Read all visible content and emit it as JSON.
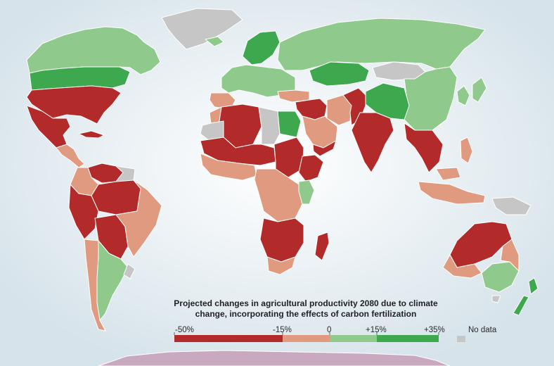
{
  "title": "Projected changes in agricultural productivity 2080 due to climate change, incorporating the effects of carbon fertilization",
  "title_line1": "Projected changes in agricultural productivity 2080 due to climate",
  "title_line2": "change, incorporating the effects of carbon fertilization",
  "legend": {
    "ticks": [
      "-50%",
      "-15%",
      "0",
      "+15%",
      "+35%"
    ],
    "no_data_label": "No data",
    "classes": [
      {
        "range": "-50% to -15%",
        "color": "#b22a2a"
      },
      {
        "range": "-15% to 0",
        "color": "#df9a80"
      },
      {
        "range": "0 to +15%",
        "color": "#8fca8c"
      },
      {
        "range": "+15% to +35%",
        "color": "#3da84d"
      }
    ],
    "no_data_color": "#c6c6c6"
  },
  "colors": {
    "ocean": "#dde8ee",
    "severe_loss": "#b22a2a",
    "loss": "#df9a80",
    "gain": "#8fca8c",
    "strong_gain": "#3da84d",
    "no_data": "#c6c6c6",
    "antarctica": "#c9a9c0"
  },
  "regions": [
    {
      "name": "Canada",
      "class": "gain"
    },
    {
      "name": "Greenland",
      "class": "no_data"
    },
    {
      "name": "Northern United States",
      "class": "strong_gain"
    },
    {
      "name": "Southern United States",
      "class": "severe_loss"
    },
    {
      "name": "Mexico",
      "class": "severe_loss"
    },
    {
      "name": "Central America",
      "class": "loss"
    },
    {
      "name": "Cuba",
      "class": "severe_loss"
    },
    {
      "name": "Venezuela",
      "class": "severe_loss"
    },
    {
      "name": "Colombia",
      "class": "loss"
    },
    {
      "name": "Guyanas",
      "class": "no_data"
    },
    {
      "name": "Northern Brazil",
      "class": "severe_loss"
    },
    {
      "name": "Peru",
      "class": "severe_loss"
    },
    {
      "name": "Bolivia and Paraguay",
      "class": "severe_loss"
    },
    {
      "name": "Eastern Brazil",
      "class": "loss"
    },
    {
      "name": "Argentina",
      "class": "gain"
    },
    {
      "name": "Chile",
      "class": "loss"
    },
    {
      "name": "Uruguay",
      "class": "no_data"
    },
    {
      "name": "Scandinavia",
      "class": "strong_gain"
    },
    {
      "name": "Western Europe",
      "class": "gain"
    },
    {
      "name": "Iberia",
      "class": "loss"
    },
    {
      "name": "Iceland",
      "class": "gain"
    },
    {
      "name": "Russia",
      "class": "gain"
    },
    {
      "name": "Kazakhstan",
      "class": "strong_gain"
    },
    {
      "name": "Mongolia",
      "class": "no_data"
    },
    {
      "name": "China",
      "class": "gain"
    },
    {
      "name": "Northern China",
      "class": "strong_gain"
    },
    {
      "name": "Turkey",
      "class": "loss"
    },
    {
      "name": "Middle East",
      "class": "severe_loss"
    },
    {
      "name": "Arabian Peninsula",
      "class": "loss"
    },
    {
      "name": "Yemen",
      "class": "severe_loss"
    },
    {
      "name": "Iran",
      "class": "loss"
    },
    {
      "name": "Afghanistan and Pakistan",
      "class": "severe_loss"
    },
    {
      "name": "India",
      "class": "severe_loss"
    },
    {
      "name": "Southeast Asia",
      "class": "severe_loss"
    },
    {
      "name": "Korea and Japan",
      "class": "gain"
    },
    {
      "name": "Philippines",
      "class": "loss"
    },
    {
      "name": "Indonesia",
      "class": "loss"
    },
    {
      "name": "Papua New Guinea",
      "class": "no_data"
    },
    {
      "name": "Morocco",
      "class": "loss"
    },
    {
      "name": "Algeria",
      "class": "severe_loss"
    },
    {
      "name": "Libya",
      "class": "no_data"
    },
    {
      "name": "Egypt",
      "class": "strong_gain"
    },
    {
      "name": "Western Sahara",
      "class": "no_data"
    },
    {
      "name": "Sahel",
      "class": "severe_loss"
    },
    {
      "name": "Sudan",
      "class": "severe_loss"
    },
    {
      "name": "Ethiopia",
      "class": "severe_loss"
    },
    {
      "name": "West Africa",
      "class": "loss"
    },
    {
      "name": "Central Africa",
      "class": "loss"
    },
    {
      "name": "Kenya",
      "class": "gain"
    },
    {
      "name": "Southern Africa",
      "class": "severe_loss"
    },
    {
      "name": "South Africa",
      "class": "loss"
    },
    {
      "name": "Madagascar",
      "class": "severe_loss"
    },
    {
      "name": "Northern Australia",
      "class": "severe_loss"
    },
    {
      "name": "South-eastern Australia",
      "class": "gain"
    },
    {
      "name": "Western Australia",
      "class": "loss"
    },
    {
      "name": "Tasmania",
      "class": "no_data"
    },
    {
      "name": "New Zealand",
      "class": "strong_gain"
    },
    {
      "name": "Antarctica",
      "class": "antarctica"
    }
  ]
}
